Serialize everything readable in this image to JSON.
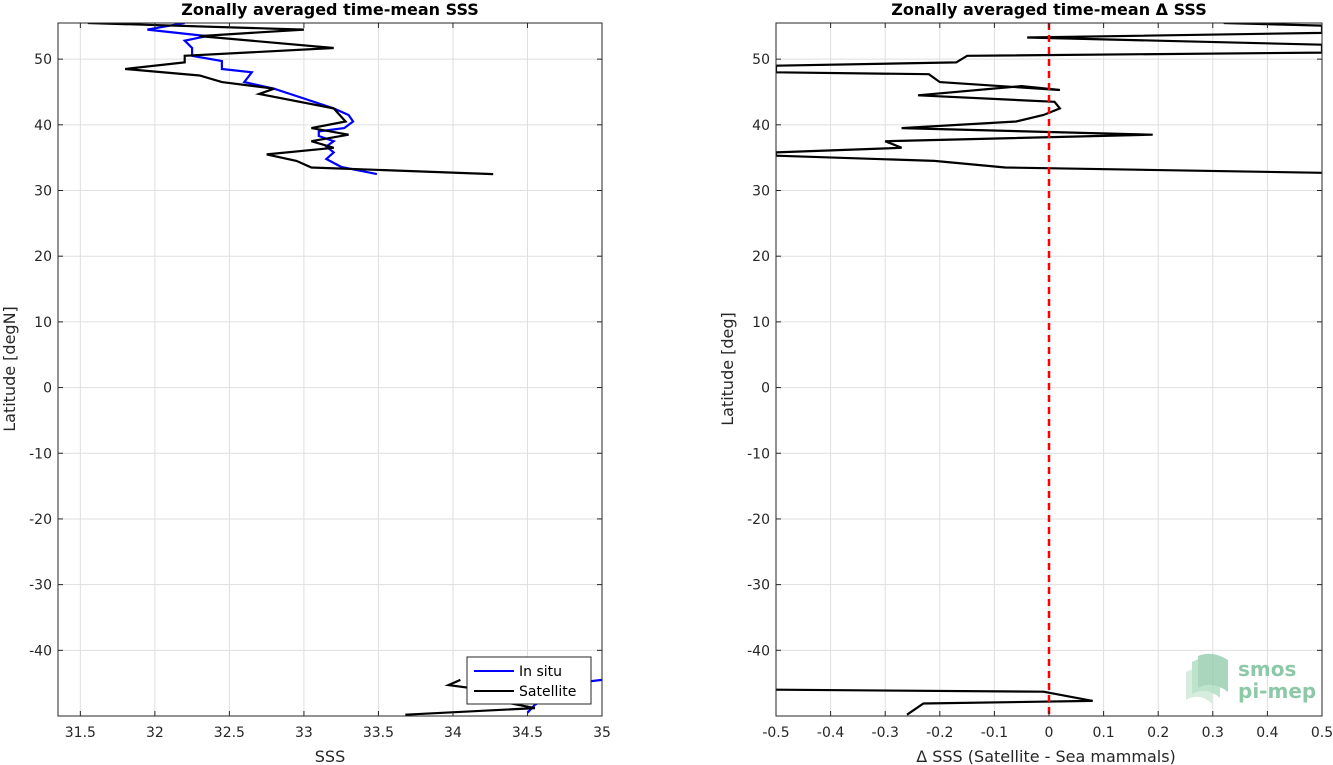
{
  "chart_data": [
    {
      "type": "line",
      "title": "Zonally averaged time-mean SSS",
      "xlabel": "SSS",
      "ylabel": "Latitude [degN]",
      "xlim": [
        31.35,
        35
      ],
      "ylim": [
        -50,
        55.5
      ],
      "xticks": [
        "31.5",
        "32",
        "32.5",
        "33",
        "33.5",
        "34",
        "34.5",
        "35"
      ],
      "xtick_values": [
        31.5,
        32,
        32.5,
        33,
        33.5,
        34,
        34.5,
        35
      ],
      "yticks": [
        "-40",
        "-30",
        "-20",
        "-10",
        "0",
        "10",
        "20",
        "30",
        "40",
        "50"
      ],
      "ytick_values": [
        -40,
        -30,
        -20,
        -10,
        0,
        10,
        20,
        30,
        40,
        50
      ],
      "grid": true,
      "legend_location": "bottom-right",
      "legend": [
        "In situ",
        "Satellite"
      ],
      "series": [
        {
          "name": "In situ",
          "color": "#0000ff",
          "points": [
            [
              32.2,
              55.5
            ],
            [
              31.95,
              54.5
            ],
            [
              32.35,
              53.5
            ],
            [
              32.2,
              52.8
            ],
            [
              32.25,
              51.7
            ],
            [
              32.25,
              50.5
            ],
            [
              32.45,
              49.7
            ],
            [
              32.45,
              48.5
            ],
            [
              32.65,
              48.0
            ],
            [
              32.6,
              46.5
            ],
            [
              32.8,
              45.5
            ],
            [
              33.0,
              44.0
            ],
            [
              33.2,
              42.5
            ],
            [
              33.3,
              41.5
            ],
            [
              33.33,
              40.5
            ],
            [
              33.27,
              39.5
            ],
            [
              33.1,
              39.0
            ],
            [
              33.1,
              38.3
            ],
            [
              33.2,
              37.5
            ],
            [
              33.15,
              36.7
            ],
            [
              33.2,
              35.8
            ],
            [
              33.15,
              34.8
            ],
            [
              33.25,
              33.6
            ],
            [
              33.49,
              32.5
            ]
          ]
        },
        {
          "name": "In situ",
          "color": "#0000ff",
          "points": [
            [
              35.0,
              -44.5
            ],
            [
              34.7,
              -45.3
            ],
            [
              34.65,
              -47.0
            ],
            [
              34.55,
              -48.3
            ],
            [
              34.5,
              -49.5
            ]
          ]
        },
        {
          "name": "Satellite",
          "color": "#000000",
          "points": [
            [
              31.55,
              55.5
            ],
            [
              33.0,
              54.5
            ],
            [
              32.3,
              53.5
            ],
            [
              33.2,
              51.7
            ],
            [
              32.2,
              50.5
            ],
            [
              32.2,
              49.5
            ],
            [
              31.8,
              48.5
            ],
            [
              32.3,
              47.5
            ],
            [
              32.45,
              46.5
            ],
            [
              32.8,
              45.5
            ],
            [
              32.7,
              44.7
            ],
            [
              33.2,
              42.5
            ],
            [
              33.28,
              40.5
            ],
            [
              33.05,
              39.5
            ],
            [
              33.3,
              38.5
            ],
            [
              33.05,
              37.5
            ],
            [
              33.2,
              36.5
            ],
            [
              32.75,
              35.5
            ],
            [
              32.95,
              34.5
            ],
            [
              33.05,
              33.5
            ],
            [
              34.27,
              32.5
            ]
          ]
        },
        {
          "name": "Satellite",
          "color": "#000000",
          "points": [
            [
              34.05,
              -44.5
            ],
            [
              33.97,
              -45.3
            ],
            [
              34.6,
              -47.2
            ],
            [
              34.37,
              -48.0
            ],
            [
              34.55,
              -48.8
            ],
            [
              33.68,
              -49.8
            ]
          ]
        }
      ]
    },
    {
      "type": "line",
      "title": "Zonally averaged time-mean Δ SSS",
      "xlabel": "Δ SSS (Satellite - Sea mammals)",
      "ylabel": "Latitude [deg]",
      "xlim": [
        -0.5,
        0.5
      ],
      "ylim": [
        -50,
        55.5
      ],
      "xticks": [
        "-0.5",
        "-0.4",
        "-0.3",
        "-0.2",
        "-0.1",
        "0",
        "0.1",
        "0.2",
        "0.3",
        "0.4",
        "0.5"
      ],
      "xtick_values": [
        -0.5,
        -0.4,
        -0.3,
        -0.2,
        -0.1,
        0,
        0.1,
        0.2,
        0.3,
        0.4,
        0.5
      ],
      "yticks": [
        "-40",
        "-30",
        "-20",
        "-10",
        "0",
        "10",
        "20",
        "30",
        "40",
        "50"
      ],
      "ytick_values": [
        -40,
        -30,
        -20,
        -10,
        0,
        10,
        20,
        30,
        40,
        50
      ],
      "grid": true,
      "reference_line": {
        "x": 0,
        "color": "#ff0000",
        "style": "dashed"
      },
      "series": [
        {
          "name": "",
          "color": "#000000",
          "points": [
            [
              0.32,
              55.5
            ],
            [
              0.5,
              55.1
            ],
            [
              0.5,
              54.0
            ],
            [
              -0.04,
              53.3
            ],
            [
              0.5,
              52.2
            ],
            [
              0.5,
              51.0
            ],
            [
              -0.15,
              50.5
            ],
            [
              -0.17,
              49.5
            ],
            [
              -0.5,
              49.0
            ],
            [
              -0.5,
              48.0
            ],
            [
              -0.22,
              47.7
            ],
            [
              -0.2,
              46.5
            ],
            [
              0.02,
              45.3
            ],
            [
              -0.05,
              45.9
            ],
            [
              -0.24,
              44.5
            ],
            [
              0.01,
              43.5
            ],
            [
              0.02,
              42.5
            ],
            [
              -0.01,
              41.5
            ],
            [
              -0.06,
              40.5
            ],
            [
              -0.27,
              39.5
            ],
            [
              0.19,
              38.5
            ],
            [
              -0.3,
              37.5
            ],
            [
              -0.27,
              36.5
            ],
            [
              -0.5,
              35.8
            ],
            [
              -0.5,
              35.3
            ],
            [
              -0.21,
              34.5
            ],
            [
              -0.08,
              33.5
            ],
            [
              0.5,
              32.7
            ]
          ]
        },
        {
          "name": "",
          "color": "#000000",
          "points": [
            [
              -0.5,
              -46.0
            ],
            [
              -0.01,
              -46.3
            ],
            [
              0.08,
              -47.7
            ],
            [
              -0.23,
              -48.1
            ],
            [
              -0.26,
              -49.8
            ]
          ]
        }
      ]
    }
  ],
  "logo": {
    "line1": "smos",
    "line2": "pi-mep",
    "color": "#8dc9a8"
  }
}
